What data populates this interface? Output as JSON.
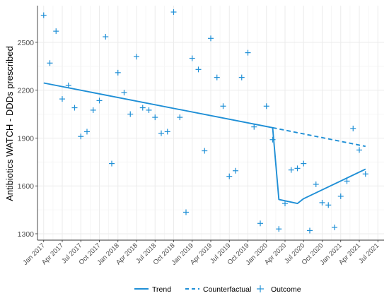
{
  "chart_data": {
    "type": "line",
    "title": "",
    "xlabel": "",
    "ylabel": "Antibiotics WATCH - DDDs prescribed",
    "xlim": [
      "2016-12",
      "2021-08"
    ],
    "ylim": [
      1260,
      2730
    ],
    "x_ticks": [
      "Jan 2017",
      "Apr 2017",
      "Jul 2017",
      "Oct 2017",
      "Jan 2018",
      "Apr 2018",
      "Jul 2018",
      "Oct 2018",
      "Jan 2019",
      "Apr 2019",
      "Jul 2019",
      "Oct 2019",
      "Jan 2020",
      "Apr 2020",
      "Jul 2020",
      "Oct 2020",
      "Jan 2021",
      "Apr 2021",
      "Jul 2021"
    ],
    "y_ticks": [
      1300,
      1600,
      1900,
      2200,
      2500
    ],
    "grid": true,
    "legend_position": "bottom",
    "colors": {
      "series": "#1f8fd6",
      "grid": "#ebebeb",
      "axis_text": "#4d4d4d"
    },
    "series": [
      {
        "name": "Outcome",
        "style": "points",
        "marker": "plus",
        "points": [
          {
            "x": "2017-01",
            "y": 2670
          },
          {
            "x": "2017-02",
            "y": 2370
          },
          {
            "x": "2017-03",
            "y": 2570
          },
          {
            "x": "2017-04",
            "y": 2145
          },
          {
            "x": "2017-05",
            "y": 2230
          },
          {
            "x": "2017-06",
            "y": 2090
          },
          {
            "x": "2017-07",
            "y": 1910
          },
          {
            "x": "2017-08",
            "y": 1940
          },
          {
            "x": "2017-09",
            "y": 2075
          },
          {
            "x": "2017-10",
            "y": 2135
          },
          {
            "x": "2017-11",
            "y": 2535
          },
          {
            "x": "2017-12",
            "y": 1740
          },
          {
            "x": "2018-01",
            "y": 2310
          },
          {
            "x": "2018-02",
            "y": 2185
          },
          {
            "x": "2018-03",
            "y": 2050
          },
          {
            "x": "2018-04",
            "y": 2410
          },
          {
            "x": "2018-05",
            "y": 2090
          },
          {
            "x": "2018-06",
            "y": 2075
          },
          {
            "x": "2018-07",
            "y": 2030
          },
          {
            "x": "2018-08",
            "y": 1930
          },
          {
            "x": "2018-09",
            "y": 1940
          },
          {
            "x": "2018-10",
            "y": 2690
          },
          {
            "x": "2018-11",
            "y": 2030
          },
          {
            "x": "2018-12",
            "y": 1435
          },
          {
            "x": "2019-01",
            "y": 2400
          },
          {
            "x": "2019-02",
            "y": 2330
          },
          {
            "x": "2019-03",
            "y": 1820
          },
          {
            "x": "2019-04",
            "y": 2525
          },
          {
            "x": "2019-05",
            "y": 2280
          },
          {
            "x": "2019-06",
            "y": 2100
          },
          {
            "x": "2019-07",
            "y": 1660
          },
          {
            "x": "2019-08",
            "y": 1695
          },
          {
            "x": "2019-09",
            "y": 2280
          },
          {
            "x": "2019-10",
            "y": 2435
          },
          {
            "x": "2019-11",
            "y": 1970
          },
          {
            "x": "2019-12",
            "y": 1365
          },
          {
            "x": "2020-01",
            "y": 2100
          },
          {
            "x": "2020-02",
            "y": 1890
          },
          {
            "x": "2020-03",
            "y": 1330
          },
          {
            "x": "2020-04",
            "y": 1490
          },
          {
            "x": "2020-05",
            "y": 1700
          },
          {
            "x": "2020-06",
            "y": 1710
          },
          {
            "x": "2020-07",
            "y": 1740
          },
          {
            "x": "2020-08",
            "y": 1320
          },
          {
            "x": "2020-09",
            "y": 1610
          },
          {
            "x": "2020-10",
            "y": 1495
          },
          {
            "x": "2020-11",
            "y": 1480
          },
          {
            "x": "2020-12",
            "y": 1340
          },
          {
            "x": "2021-01",
            "y": 1535
          },
          {
            "x": "2021-02",
            "y": 1630
          },
          {
            "x": "2021-03",
            "y": 1960
          },
          {
            "x": "2021-04",
            "y": 1825
          },
          {
            "x": "2021-05",
            "y": 1675
          }
        ]
      },
      {
        "name": "Trend",
        "style": "solid",
        "points": [
          {
            "x": "2017-01",
            "y": 2245
          },
          {
            "x": "2020-02",
            "y": 1965
          },
          {
            "x": "2020-03",
            "y": 1515
          },
          {
            "x": "2020-06",
            "y": 1490
          },
          {
            "x": "2020-07",
            "y": 1520
          },
          {
            "x": "2021-05",
            "y": 1705
          }
        ]
      },
      {
        "name": "Counterfactual",
        "style": "dashed",
        "points": [
          {
            "x": "2020-02",
            "y": 1965
          },
          {
            "x": "2021-05",
            "y": 1848
          }
        ]
      }
    ]
  }
}
